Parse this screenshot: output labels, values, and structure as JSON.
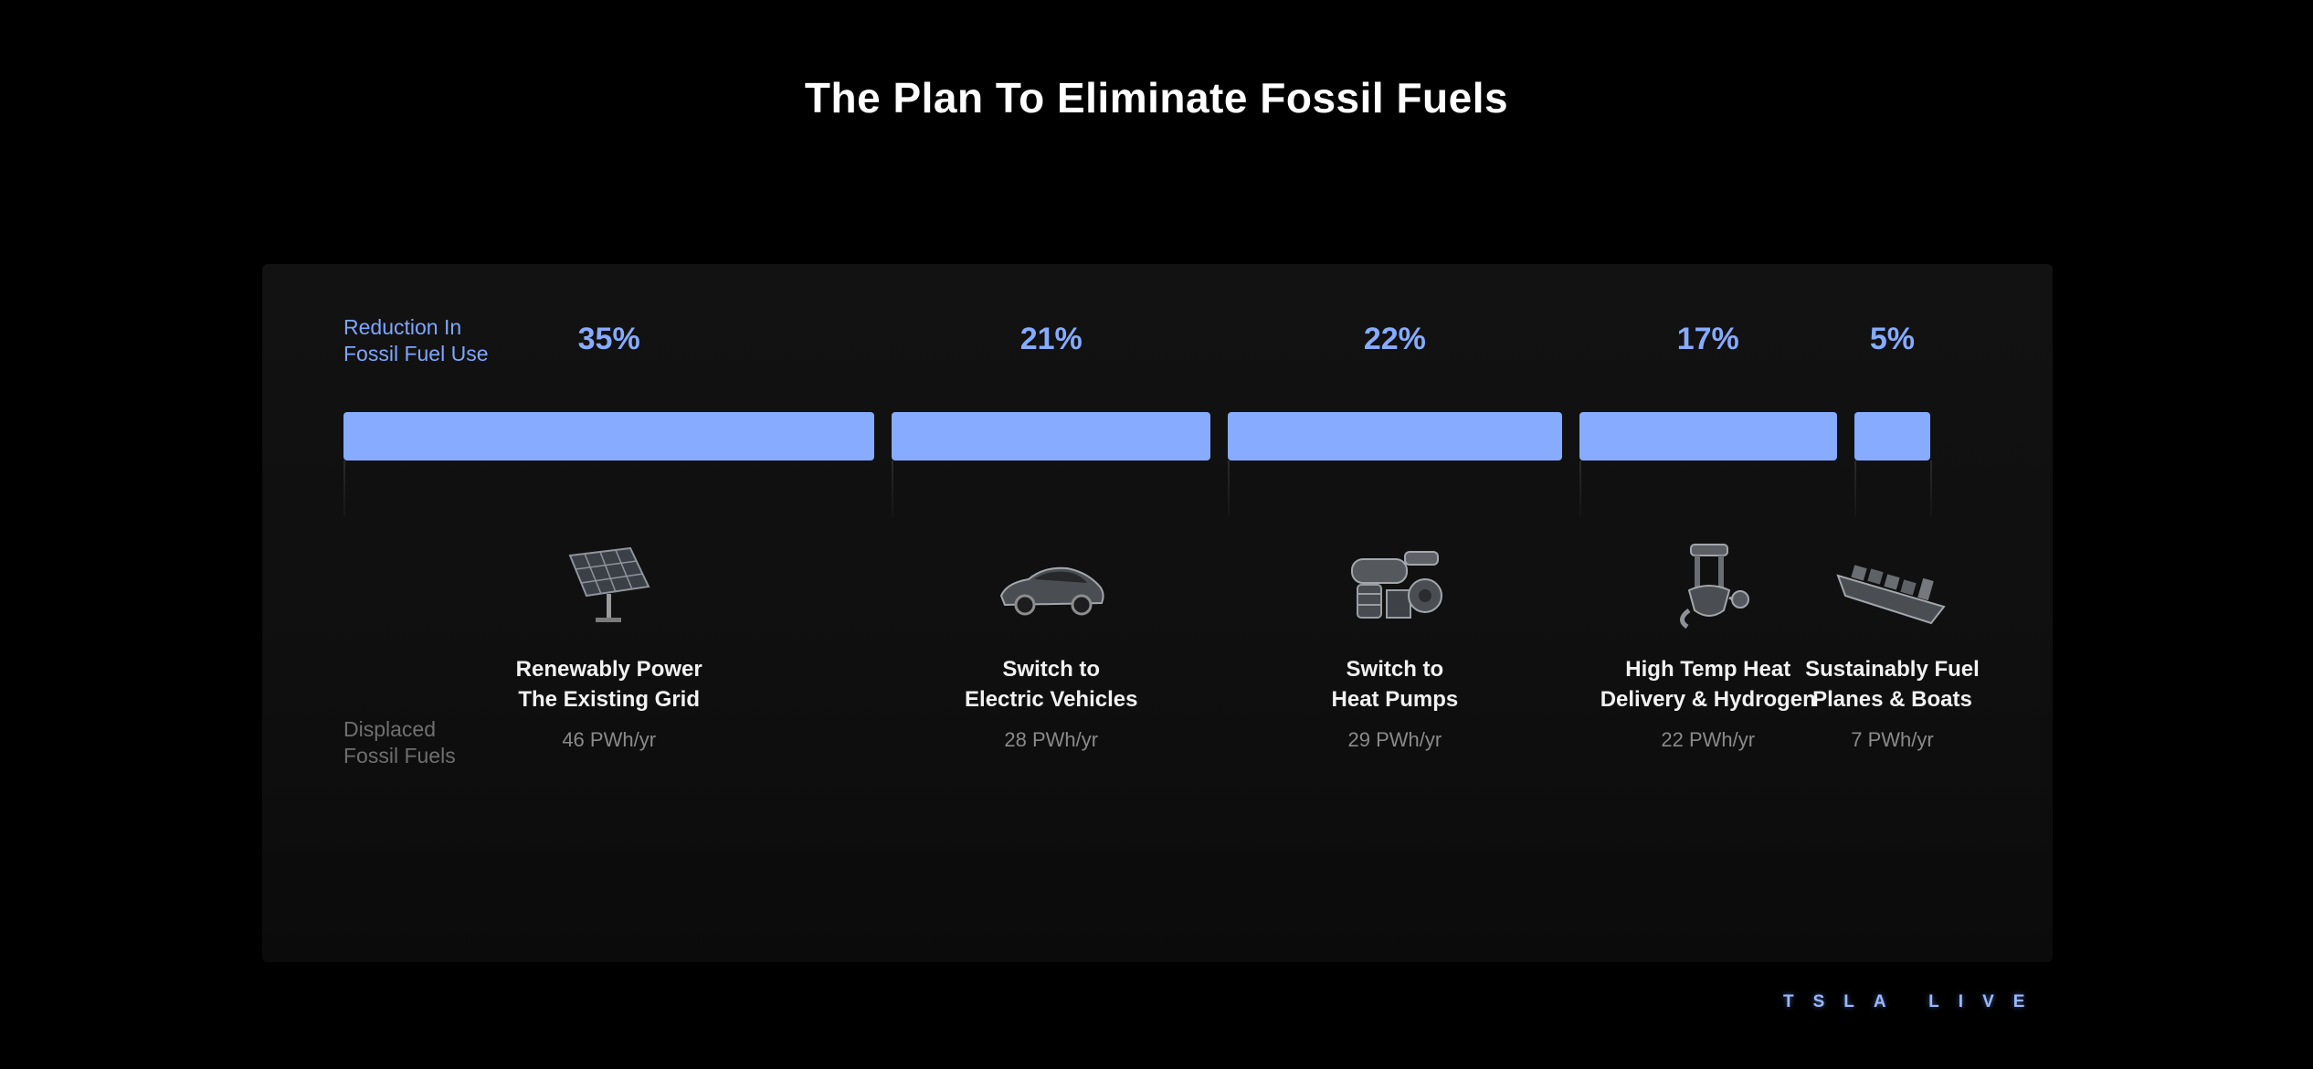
{
  "title": "The Plan To Eliminate Fossil Fuels",
  "row_labels": {
    "reduction_line1": "Reduction In",
    "reduction_line2": "Fossil Fuel Use",
    "displaced_line1": "Displaced",
    "displaced_line2": "Fossil Fuels"
  },
  "watermark": "TSLA LIVE",
  "colors": {
    "bar": "#86abff",
    "percent": "#86abff",
    "background": "#000000"
  },
  "chart_data": {
    "type": "bar",
    "orientation": "horizontal-stacked",
    "title": "The Plan To Eliminate Fossil Fuels",
    "categories": [
      "Renewably Power The Existing Grid",
      "Switch to Electric Vehicles",
      "Switch to Heat Pumps",
      "High Temp Heat Delivery & Hydrogen",
      "Sustainably Fuel Planes & Boats"
    ],
    "series": [
      {
        "name": "Reduction In Fossil Fuel Use",
        "values": [
          35,
          21,
          22,
          17,
          5
        ],
        "unit": "%"
      },
      {
        "name": "Displaced Fossil Fuels",
        "values": [
          46,
          28,
          29,
          22,
          7
        ],
        "unit": "PWh/yr"
      }
    ],
    "items": [
      {
        "percent_label": "35%",
        "reduction_pct": 35,
        "label_line1": "Renewably Power",
        "label_line2": "The Existing Grid",
        "displaced_label": "46 PWh/yr",
        "displaced_pwh": 46,
        "icon": "solar-panel-icon"
      },
      {
        "percent_label": "21%",
        "reduction_pct": 21,
        "label_line1": "Switch to",
        "label_line2": "Electric Vehicles",
        "displaced_label": "28 PWh/yr",
        "displaced_pwh": 28,
        "icon": "electric-car-icon"
      },
      {
        "percent_label": "22%",
        "reduction_pct": 22,
        "label_line1": "Switch to",
        "label_line2": "Heat Pumps",
        "displaced_label": "29 PWh/yr",
        "displaced_pwh": 29,
        "icon": "heat-pump-icon"
      },
      {
        "percent_label": "17%",
        "reduction_pct": 17,
        "label_line1": "High Temp Heat",
        "label_line2": "Delivery & Hydrogen",
        "displaced_label": "22 PWh/yr",
        "displaced_pwh": 22,
        "icon": "industrial-heat-icon"
      },
      {
        "percent_label": "5%",
        "reduction_pct": 5,
        "label_line1": "Sustainably Fuel",
        "label_line2": "Planes & Boats",
        "displaced_label": "7 PWh/yr",
        "displaced_pwh": 7,
        "icon": "cargo-ship-icon"
      }
    ]
  }
}
